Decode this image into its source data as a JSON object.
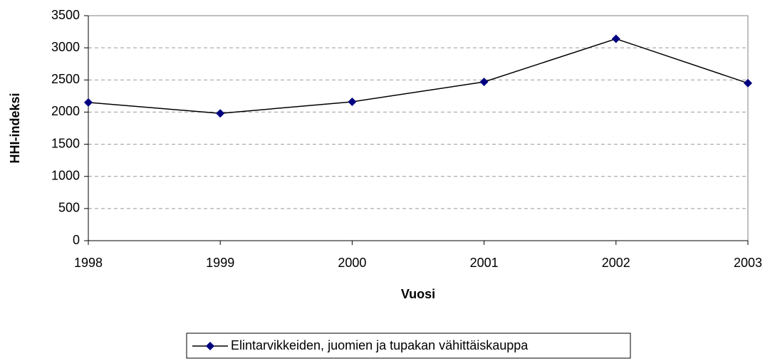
{
  "chart_data": {
    "type": "line",
    "x_label": "Vuosi",
    "y_label": "HHI-indeksi",
    "x": [
      1998,
      1999,
      2000,
      2001,
      2002,
      2003
    ],
    "series": [
      {
        "name": "Elintarvikkeiden, juomien ja tupakan vähittäiskauppa",
        "color": "#000080",
        "line_color": "#000000",
        "values": [
          2150,
          1980,
          2160,
          2470,
          3140,
          2450
        ]
      }
    ],
    "xlim": [
      1998,
      2003
    ],
    "xticks": [
      1998,
      1999,
      2000,
      2001,
      2002,
      2003
    ],
    "ylim": [
      0,
      3500
    ],
    "yticks": [
      0,
      500,
      1000,
      1500,
      2000,
      2500,
      3000,
      3500
    ],
    "grid": true,
    "legend": "bottom"
  }
}
